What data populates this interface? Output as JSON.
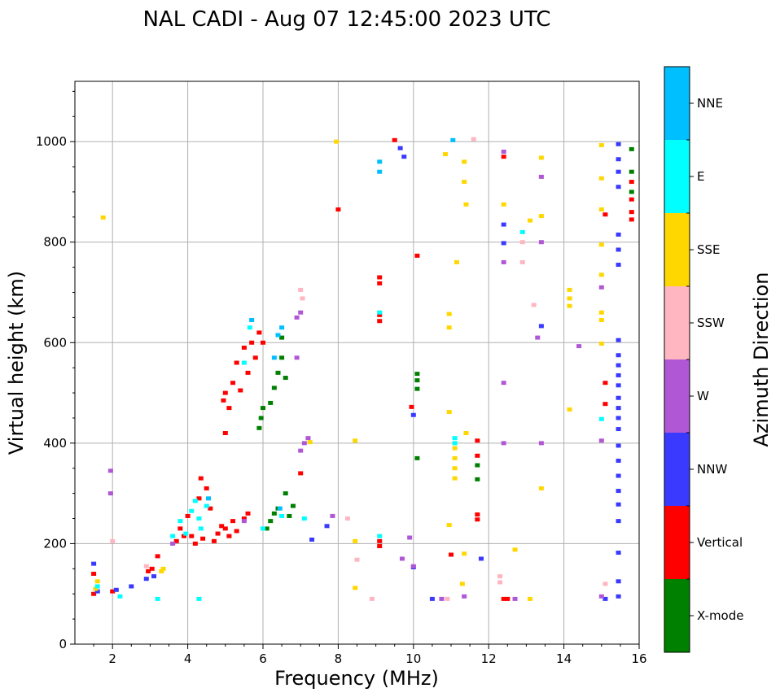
{
  "chart_data": {
    "type": "scatter",
    "title": "NAL CADI - Aug 07 12:45:00 2023 UTC",
    "xlabel": "Frequency (MHz)",
    "ylabel": "Virtual height (km)",
    "xlim": [
      1,
      16
    ],
    "ylim": [
      0,
      1120
    ],
    "xticks": [
      2,
      4,
      6,
      8,
      10,
      12,
      14,
      16
    ],
    "yticks": [
      0,
      200,
      400,
      600,
      800,
      1000
    ],
    "x_tick_labels": [
      "2",
      "4",
      "6",
      "8",
      "10",
      "12",
      "14",
      "16"
    ],
    "y_tick_labels": [
      "0",
      "200",
      "400",
      "600",
      "800",
      "1000"
    ],
    "grid": true,
    "colorbar": {
      "label": "Azimuth Direction",
      "categories": [
        "X-mode",
        "Vertical",
        "NNW",
        "W",
        "SSW",
        "SSE",
        "E",
        "NNE"
      ],
      "colors": {
        "X-mode": "#008000",
        "Vertical": "#ff0000",
        "NNW": "#3a3aff",
        "W": "#b057d6",
        "SSW": "#ffb6c1",
        "SSE": "#ffd700",
        "E": "#00ffff",
        "NNE": "#00bfff"
      }
    },
    "series": [
      {
        "name": "Vertical",
        "points": [
          [
            1.5,
            140
          ],
          [
            1.5,
            100
          ],
          [
            2.0,
            105
          ],
          [
            2.95,
            145
          ],
          [
            3.05,
            150
          ],
          [
            3.2,
            175
          ],
          [
            3.7,
            205
          ],
          [
            3.8,
            230
          ],
          [
            3.9,
            215
          ],
          [
            4.0,
            255
          ],
          [
            4.1,
            215
          ],
          [
            4.2,
            200
          ],
          [
            4.3,
            290
          ],
          [
            4.35,
            330
          ],
          [
            4.4,
            210
          ],
          [
            4.5,
            310
          ],
          [
            4.6,
            270
          ],
          [
            4.7,
            205
          ],
          [
            4.8,
            220
          ],
          [
            4.9,
            235
          ],
          [
            5.0,
            230
          ],
          [
            5.1,
            215
          ],
          [
            5.2,
            245
          ],
          [
            5.3,
            225
          ],
          [
            5.5,
            250
          ],
          [
            5.6,
            260
          ],
          [
            4.95,
            485
          ],
          [
            5.0,
            500
          ],
          [
            5.1,
            470
          ],
          [
            5.2,
            520
          ],
          [
            5.3,
            560
          ],
          [
            5.4,
            505
          ],
          [
            5.5,
            590
          ],
          [
            5.6,
            540
          ],
          [
            5.7,
            600
          ],
          [
            5.8,
            570
          ],
          [
            5.9,
            620
          ],
          [
            6.0,
            600
          ],
          [
            5.0,
            420
          ],
          [
            7.0,
            340
          ],
          [
            8.0,
            865
          ],
          [
            9.1,
            730
          ],
          [
            9.1,
            718
          ],
          [
            9.1,
            655
          ],
          [
            9.1,
            643
          ],
          [
            9.1,
            205
          ],
          [
            9.1,
            195
          ],
          [
            9.5,
            1003
          ],
          [
            10.1,
            773
          ],
          [
            9.95,
            472
          ],
          [
            11.0,
            178
          ],
          [
            11.7,
            405
          ],
          [
            11.7,
            375
          ],
          [
            11.7,
            258
          ],
          [
            11.7,
            248
          ],
          [
            12.4,
            970
          ],
          [
            12.4,
            90
          ],
          [
            12.5,
            90
          ],
          [
            15.1,
            855
          ],
          [
            15.1,
            520
          ],
          [
            15.1,
            478
          ],
          [
            15.8,
            885
          ],
          [
            15.8,
            860
          ],
          [
            15.8,
            845
          ],
          [
            15.8,
            920
          ]
        ]
      },
      {
        "name": "X-mode",
        "points": [
          [
            5.9,
            430
          ],
          [
            5.95,
            450
          ],
          [
            6.0,
            470
          ],
          [
            6.2,
            480
          ],
          [
            6.3,
            510
          ],
          [
            6.4,
            540
          ],
          [
            6.5,
            570
          ],
          [
            6.6,
            530
          ],
          [
            6.5,
            610
          ],
          [
            6.1,
            230
          ],
          [
            6.2,
            245
          ],
          [
            6.3,
            260
          ],
          [
            6.4,
            270
          ],
          [
            6.6,
            300
          ],
          [
            6.7,
            255
          ],
          [
            6.8,
            275
          ],
          [
            10.1,
            538
          ],
          [
            10.1,
            525
          ],
          [
            10.1,
            508
          ],
          [
            10.1,
            370
          ],
          [
            11.7,
            328
          ],
          [
            11.7,
            356
          ],
          [
            15.8,
            985
          ],
          [
            15.8,
            940
          ],
          [
            15.8,
            900
          ]
        ]
      },
      {
        "name": "NNW",
        "points": [
          [
            1.5,
            160
          ],
          [
            1.6,
            105
          ],
          [
            2.1,
            108
          ],
          [
            2.5,
            115
          ],
          [
            2.9,
            130
          ],
          [
            3.1,
            135
          ],
          [
            7.3,
            208
          ],
          [
            7.7,
            235
          ],
          [
            9.65,
            987
          ],
          [
            9.75,
            970
          ],
          [
            10.0,
            456
          ],
          [
            10.0,
            153
          ],
          [
            10.5,
            90
          ],
          [
            11.8,
            170
          ],
          [
            12.4,
            835
          ],
          [
            12.4,
            798
          ],
          [
            13.4,
            633
          ],
          [
            15.45,
            995
          ],
          [
            15.45,
            965
          ],
          [
            15.45,
            940
          ],
          [
            15.45,
            910
          ],
          [
            15.45,
            815
          ],
          [
            15.45,
            785
          ],
          [
            15.45,
            755
          ],
          [
            15.45,
            605
          ],
          [
            15.45,
            575
          ],
          [
            15.45,
            555
          ],
          [
            15.45,
            535
          ],
          [
            15.45,
            515
          ],
          [
            15.45,
            490
          ],
          [
            15.45,
            470
          ],
          [
            15.45,
            450
          ],
          [
            15.45,
            428
          ],
          [
            15.45,
            395
          ],
          [
            15.45,
            365
          ],
          [
            15.45,
            335
          ],
          [
            15.45,
            305
          ],
          [
            15.45,
            278
          ],
          [
            15.45,
            245
          ],
          [
            15.45,
            182
          ],
          [
            15.45,
            125
          ],
          [
            15.45,
            95
          ],
          [
            15.1,
            90
          ]
        ]
      },
      {
        "name": "W",
        "points": [
          [
            1.95,
            345
          ],
          [
            1.95,
            300
          ],
          [
            3.6,
            200
          ],
          [
            5.5,
            245
          ],
          [
            7.0,
            385
          ],
          [
            7.1,
            400
          ],
          [
            7.2,
            410
          ],
          [
            6.9,
            570
          ],
          [
            6.9,
            650
          ],
          [
            7.0,
            660
          ],
          [
            7.85,
            255
          ],
          [
            9.9,
            212
          ],
          [
            9.7,
            170
          ],
          [
            10.0,
            155
          ],
          [
            10.75,
            90
          ],
          [
            11.35,
            95
          ],
          [
            12.4,
            980
          ],
          [
            12.4,
            760
          ],
          [
            12.4,
            520
          ],
          [
            12.4,
            400
          ],
          [
            12.7,
            90
          ],
          [
            13.4,
            930
          ],
          [
            13.3,
            610
          ],
          [
            13.4,
            400
          ],
          [
            13.4,
            800
          ],
          [
            14.4,
            593
          ],
          [
            15.0,
            710
          ],
          [
            15.0,
            405
          ],
          [
            15.0,
            95
          ]
        ]
      },
      {
        "name": "SSW",
        "points": [
          [
            2.0,
            205
          ],
          [
            2.9,
            155
          ],
          [
            7.0,
            705
          ],
          [
            7.05,
            688
          ],
          [
            8.25,
            250
          ],
          [
            8.5,
            168
          ],
          [
            8.9,
            90
          ],
          [
            10.9,
            90
          ],
          [
            11.6,
            1005
          ],
          [
            12.3,
            135
          ],
          [
            12.3,
            123
          ],
          [
            12.9,
            800
          ],
          [
            12.9,
            760
          ],
          [
            13.2,
            675
          ],
          [
            15.1,
            120
          ]
        ]
      },
      {
        "name": "SSE",
        "points": [
          [
            1.55,
            110
          ],
          [
            1.6,
            125
          ],
          [
            1.75,
            849
          ],
          [
            3.3,
            145
          ],
          [
            3.35,
            150
          ],
          [
            7.25,
            402
          ],
          [
            7.95,
            1000
          ],
          [
            8.45,
            405
          ],
          [
            8.45,
            205
          ],
          [
            8.45,
            112
          ],
          [
            10.85,
            975
          ],
          [
            10.95,
            657
          ],
          [
            10.95,
            630
          ],
          [
            10.95,
            462
          ],
          [
            10.95,
            237
          ],
          [
            11.15,
            760
          ],
          [
            11.1,
            330
          ],
          [
            11.1,
            350
          ],
          [
            11.1,
            370
          ],
          [
            11.1,
            390
          ],
          [
            11.35,
            960
          ],
          [
            11.35,
            920
          ],
          [
            11.4,
            875
          ],
          [
            11.4,
            420
          ],
          [
            11.35,
            180
          ],
          [
            11.3,
            120
          ],
          [
            12.4,
            875
          ],
          [
            12.7,
            188
          ],
          [
            13.1,
            843
          ],
          [
            13.1,
            90
          ],
          [
            13.4,
            968
          ],
          [
            13.4,
            852
          ],
          [
            13.4,
            310
          ],
          [
            14.15,
            705
          ],
          [
            14.15,
            688
          ],
          [
            14.15,
            673
          ],
          [
            14.15,
            467
          ],
          [
            15.0,
            993
          ],
          [
            15.0,
            927
          ],
          [
            15.0,
            865
          ],
          [
            15.0,
            795
          ],
          [
            15.0,
            735
          ],
          [
            15.0,
            660
          ],
          [
            15.0,
            645
          ],
          [
            15.0,
            598
          ]
        ]
      },
      {
        "name": "E",
        "points": [
          [
            1.6,
            115
          ],
          [
            2.2,
            95
          ],
          [
            3.2,
            90
          ],
          [
            3.6,
            215
          ],
          [
            3.8,
            245
          ],
          [
            3.95,
            220
          ],
          [
            4.1,
            265
          ],
          [
            4.2,
            285
          ],
          [
            4.3,
            250
          ],
          [
            4.35,
            230
          ],
          [
            4.5,
            275
          ],
          [
            4.3,
            90
          ],
          [
            5.5,
            560
          ],
          [
            5.65,
            630
          ],
          [
            6.0,
            230
          ],
          [
            6.5,
            255
          ],
          [
            7.1,
            250
          ],
          [
            9.1,
            660
          ],
          [
            9.1,
            215
          ],
          [
            11.1,
            400
          ],
          [
            11.1,
            410
          ],
          [
            12.9,
            820
          ],
          [
            15.0,
            448
          ]
        ]
      },
      {
        "name": "NNE",
        "points": [
          [
            5.7,
            645
          ],
          [
            6.5,
            630
          ],
          [
            6.45,
            270
          ],
          [
            6.3,
            570
          ],
          [
            6.4,
            615
          ],
          [
            4.55,
            290
          ],
          [
            9.1,
            960
          ],
          [
            9.1,
            940
          ],
          [
            11.05,
            1003
          ]
        ]
      }
    ]
  }
}
